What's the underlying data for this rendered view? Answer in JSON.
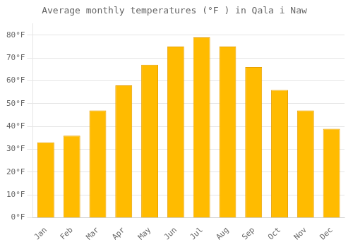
{
  "chart_data": {
    "type": "bar",
    "title": "Average monthly temperatures (°F ) in Qala i Naw",
    "categories": [
      "Jan",
      "Feb",
      "Mar",
      "Apr",
      "May",
      "Jun",
      "Jul",
      "Aug",
      "Sep",
      "Oct",
      "Nov",
      "Dec"
    ],
    "values": [
      33,
      36,
      47,
      58,
      67,
      75,
      79,
      75,
      66,
      56,
      47,
      39
    ],
    "color": "#FFBB00",
    "ylim": [
      0,
      85
    ],
    "yticks": [
      {
        "value": 0,
        "label": "0°F"
      },
      {
        "value": 10,
        "label": "10°F"
      },
      {
        "value": 20,
        "label": "20°F"
      },
      {
        "value": 30,
        "label": "30°F"
      },
      {
        "value": 40,
        "label": "40°F"
      },
      {
        "value": 50,
        "label": "50°F"
      },
      {
        "value": 60,
        "label": "60°F"
      },
      {
        "value": 70,
        "label": "70°F"
      },
      {
        "value": 80,
        "label": "80°F"
      }
    ],
    "grid": true
  }
}
